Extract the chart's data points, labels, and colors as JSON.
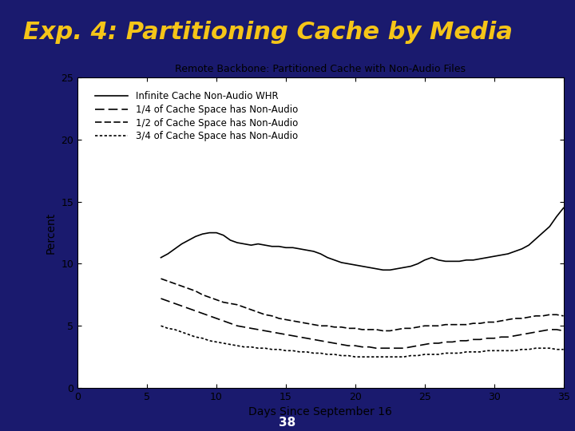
{
  "title": "Exp. 4: Partitioning Cache by Media",
  "chart_title": "Remote Backbone: Partitioned Cache with Non-Audio Files",
  "xlabel": "Days Since September 16",
  "ylabel": "Percent",
  "slide_number": "38",
  "xlim": [
    0,
    35
  ],
  "ylim": [
    0,
    25
  ],
  "xticks": [
    0,
    5,
    10,
    15,
    20,
    25,
    30,
    35
  ],
  "yticks": [
    0,
    5,
    10,
    15,
    20,
    25
  ],
  "bg_color": "#1a1a6e",
  "title_color": "#f5c518",
  "plot_bg": "#ffffff",
  "legend_entries": [
    "Infinite Cache Non-Audio WHR",
    "1/4 of Cache Space has Non-Audio",
    "1/2 of Cache Space has Non-Audio",
    "3/4 of Cache Space has Non-Audio"
  ],
  "x_data": [
    6,
    6.5,
    7,
    7.5,
    8,
    8.5,
    9,
    9.5,
    10,
    10.5,
    11,
    11.5,
    12,
    12.5,
    13,
    13.5,
    14,
    14.5,
    15,
    15.5,
    16,
    16.5,
    17,
    17.5,
    18,
    18.5,
    19,
    19.5,
    20,
    20.5,
    21,
    21.5,
    22,
    22.5,
    23,
    23.5,
    24,
    24.5,
    25,
    25.5,
    26,
    26.5,
    27,
    27.5,
    28,
    28.5,
    29,
    29.5,
    30,
    30.5,
    31,
    31.5,
    32,
    32.5,
    33,
    33.5,
    34,
    34.5,
    35
  ],
  "y_line1": [
    10.5,
    10.8,
    11.2,
    11.6,
    11.9,
    12.2,
    12.4,
    12.5,
    12.5,
    12.3,
    11.9,
    11.7,
    11.6,
    11.5,
    11.6,
    11.5,
    11.4,
    11.4,
    11.3,
    11.3,
    11.2,
    11.1,
    11.0,
    10.8,
    10.5,
    10.3,
    10.1,
    10.0,
    9.9,
    9.8,
    9.7,
    9.6,
    9.5,
    9.5,
    9.6,
    9.7,
    9.8,
    10.0,
    10.3,
    10.5,
    10.3,
    10.2,
    10.2,
    10.2,
    10.3,
    10.3,
    10.4,
    10.5,
    10.6,
    10.7,
    10.8,
    11.0,
    11.2,
    11.5,
    12.0,
    12.5,
    13.0,
    13.8,
    14.5
  ],
  "y_line2": [
    7.2,
    7.0,
    6.8,
    6.6,
    6.4,
    6.2,
    6.0,
    5.8,
    5.6,
    5.4,
    5.2,
    5.0,
    4.9,
    4.8,
    4.7,
    4.6,
    4.5,
    4.4,
    4.3,
    4.2,
    4.1,
    4.0,
    3.9,
    3.8,
    3.7,
    3.6,
    3.5,
    3.4,
    3.4,
    3.3,
    3.3,
    3.2,
    3.2,
    3.2,
    3.2,
    3.2,
    3.3,
    3.4,
    3.5,
    3.6,
    3.6,
    3.7,
    3.7,
    3.8,
    3.8,
    3.9,
    3.9,
    4.0,
    4.0,
    4.1,
    4.1,
    4.2,
    4.3,
    4.4,
    4.5,
    4.6,
    4.7,
    4.7,
    4.6
  ],
  "y_line3": [
    8.8,
    8.6,
    8.4,
    8.2,
    8.0,
    7.8,
    7.5,
    7.3,
    7.1,
    6.9,
    6.8,
    6.7,
    6.5,
    6.3,
    6.1,
    5.9,
    5.8,
    5.6,
    5.5,
    5.4,
    5.3,
    5.2,
    5.1,
    5.0,
    5.0,
    4.9,
    4.9,
    4.8,
    4.8,
    4.7,
    4.7,
    4.7,
    4.6,
    4.6,
    4.7,
    4.8,
    4.8,
    4.9,
    5.0,
    5.0,
    5.0,
    5.1,
    5.1,
    5.1,
    5.1,
    5.2,
    5.2,
    5.3,
    5.3,
    5.4,
    5.5,
    5.6,
    5.6,
    5.7,
    5.8,
    5.8,
    5.9,
    5.9,
    5.8
  ],
  "y_line4": [
    5.0,
    4.8,
    4.7,
    4.5,
    4.3,
    4.1,
    4.0,
    3.8,
    3.7,
    3.6,
    3.5,
    3.4,
    3.3,
    3.3,
    3.2,
    3.2,
    3.1,
    3.1,
    3.0,
    3.0,
    2.9,
    2.9,
    2.8,
    2.8,
    2.7,
    2.7,
    2.6,
    2.6,
    2.5,
    2.5,
    2.5,
    2.5,
    2.5,
    2.5,
    2.5,
    2.5,
    2.6,
    2.6,
    2.7,
    2.7,
    2.7,
    2.8,
    2.8,
    2.8,
    2.9,
    2.9,
    2.9,
    3.0,
    3.0,
    3.0,
    3.0,
    3.0,
    3.1,
    3.1,
    3.2,
    3.2,
    3.2,
    3.1,
    3.1
  ]
}
